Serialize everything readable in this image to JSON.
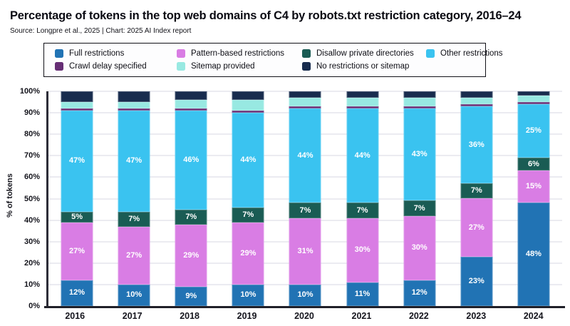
{
  "header": {
    "title": "Percentage of tokens in the top web domains of C4 by robots.txt restriction category, 2016–24",
    "source": "Source: Longpre et al., 2025 | Chart: 2025 AI Index report"
  },
  "chart_data": {
    "type": "bar",
    "stacked": true,
    "title": "Percentage of tokens in the top web domains of C4 by robots.txt restriction category, 2016–24",
    "xlabel": "",
    "ylabel": "% of tokens",
    "ylim": [
      0,
      100
    ],
    "yticks": [
      0,
      10,
      20,
      30,
      40,
      50,
      60,
      70,
      80,
      90,
      100
    ],
    "ytick_suffix": "%",
    "grid": true,
    "legend_position": "top",
    "categories": [
      "2016",
      "2017",
      "2018",
      "2019",
      "2020",
      "2021",
      "2022",
      "2023",
      "2024"
    ],
    "series": [
      {
        "name": "Full restrictions",
        "color": "#2173b4",
        "labeled": true,
        "values": [
          12,
          10,
          9,
          10,
          10,
          11,
          12,
          23,
          48
        ]
      },
      {
        "name": "Pattern-based restrictions",
        "color": "#d97de4",
        "labeled": true,
        "values": [
          27,
          27,
          29,
          29,
          31,
          30,
          30,
          27,
          15
        ]
      },
      {
        "name": "Disallow private directories",
        "color": "#1a5c54",
        "labeled": true,
        "values": [
          5,
          7,
          7,
          7,
          7,
          7,
          7,
          7,
          6
        ]
      },
      {
        "name": "Other restrictions",
        "color": "#3ac3f0",
        "labeled": true,
        "values": [
          47,
          47,
          46,
          44,
          44,
          44,
          43,
          36,
          25
        ]
      },
      {
        "name": "Crawl delay specified",
        "color": "#662e75",
        "labeled": false,
        "values": [
          1,
          1,
          1,
          1,
          1,
          1,
          1,
          1,
          1
        ]
      },
      {
        "name": "Sitemap provided",
        "color": "#98e9e2",
        "labeled": false,
        "values": [
          3,
          3,
          4,
          5,
          4,
          4,
          4,
          3,
          3
        ]
      },
      {
        "name": "No restrictions or sitemap",
        "color": "#182c4e",
        "labeled": false,
        "values": [
          5,
          5,
          4,
          4,
          3,
          3,
          3,
          3,
          2
        ]
      }
    ],
    "legend_dom_order": [
      0,
      4,
      1,
      5,
      2,
      6,
      3
    ],
    "value_label_suffix": "%"
  }
}
